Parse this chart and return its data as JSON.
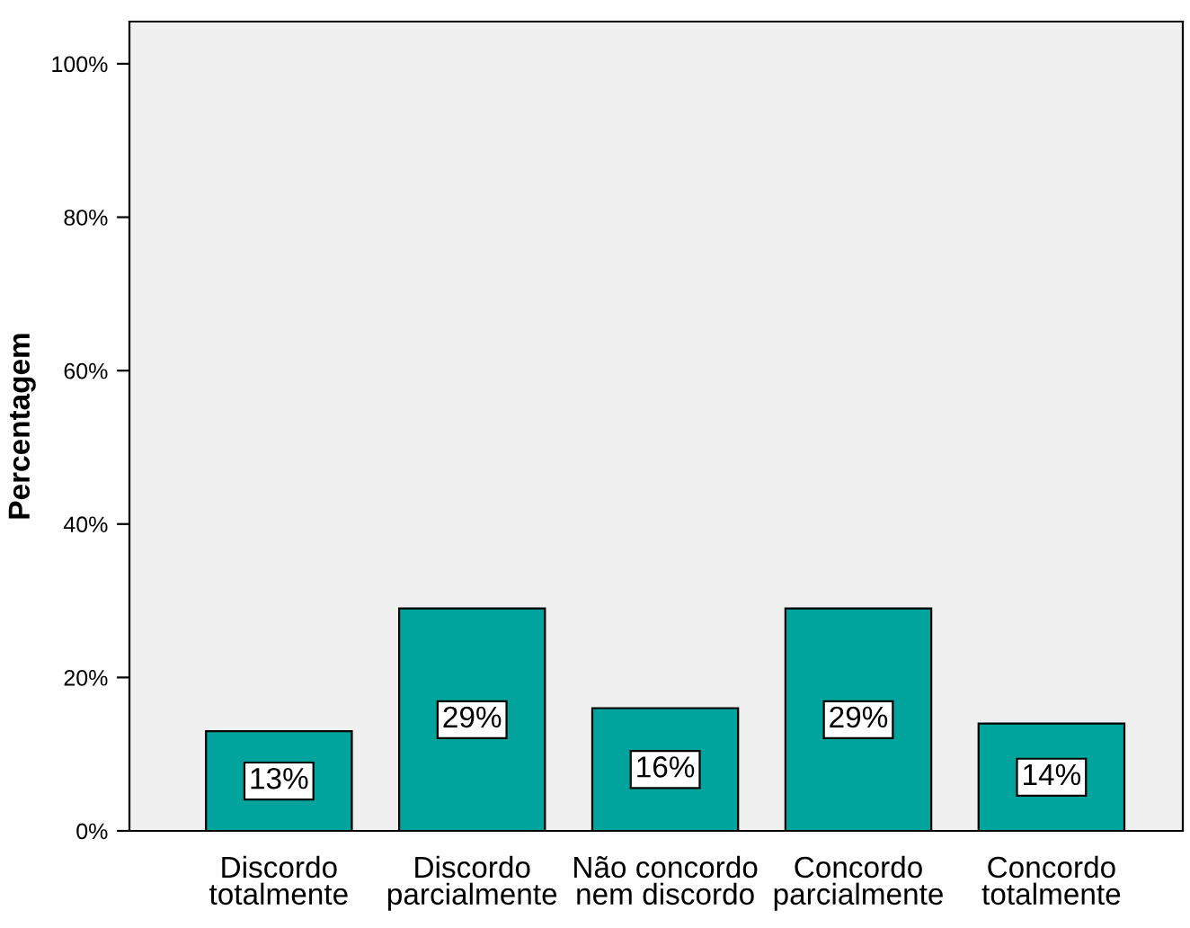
{
  "chart_data": {
    "type": "bar",
    "ylabel": "Percentagem",
    "categories": [
      "Discordo\ntotalmente",
      "Discordo\nparcialmente",
      "Não concordo\nnem discordo",
      "Concordo\nparcialmente",
      "Concordo\ntotalmente"
    ],
    "values": [
      13,
      29,
      16,
      29,
      14
    ],
    "value_labels": [
      "13%",
      "29%",
      "16%",
      "29%",
      "14%"
    ],
    "color": "#00a49c",
    "ylim": [
      0,
      105.5
    ],
    "yticks": [
      {
        "value": 0,
        "label": "0%"
      },
      {
        "value": 20,
        "label": "20%"
      },
      {
        "value": 40,
        "label": "40%"
      },
      {
        "value": 60,
        "label": "60%"
      },
      {
        "value": 80,
        "label": "80%"
      },
      {
        "value": 100,
        "label": "100%"
      }
    ],
    "grid": false,
    "legend": false
  }
}
